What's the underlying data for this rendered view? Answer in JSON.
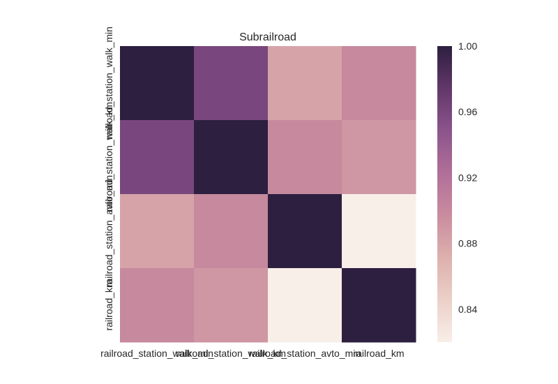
{
  "chart_data": {
    "type": "heatmap",
    "title": "Subrailroad",
    "row_labels": [
      "railroad_station_walk_min",
      "railroad_station_walk_km",
      "railroad_station_avto_min",
      "railroad_km"
    ],
    "col_labels": [
      "railroad_station_walk_min",
      "railroad_station_walk_km",
      "railroad_station_avto_min",
      "railroad_km"
    ],
    "values": [
      [
        1.0,
        0.96,
        0.88,
        0.9
      ],
      [
        0.96,
        1.0,
        0.9,
        0.89
      ],
      [
        0.88,
        0.9,
        1.0,
        0.82
      ],
      [
        0.9,
        0.89,
        0.82,
        1.0
      ]
    ],
    "vmin": 0.82,
    "vmax": 1.0,
    "colorbar": {
      "ticks": [
        0.84,
        0.88,
        0.92,
        0.96,
        1.0
      ],
      "tick_labels": [
        "0.84",
        "0.88",
        "0.92",
        "0.96",
        "1.00"
      ]
    },
    "colormap": [
      "#f8efe8",
      "#ebd0c8",
      "#ddb0ad",
      "#c98c9f",
      "#b06f98",
      "#8c548c",
      "#62376a",
      "#2d1f3f"
    ],
    "grid": false,
    "legend": "colorbar-right"
  }
}
